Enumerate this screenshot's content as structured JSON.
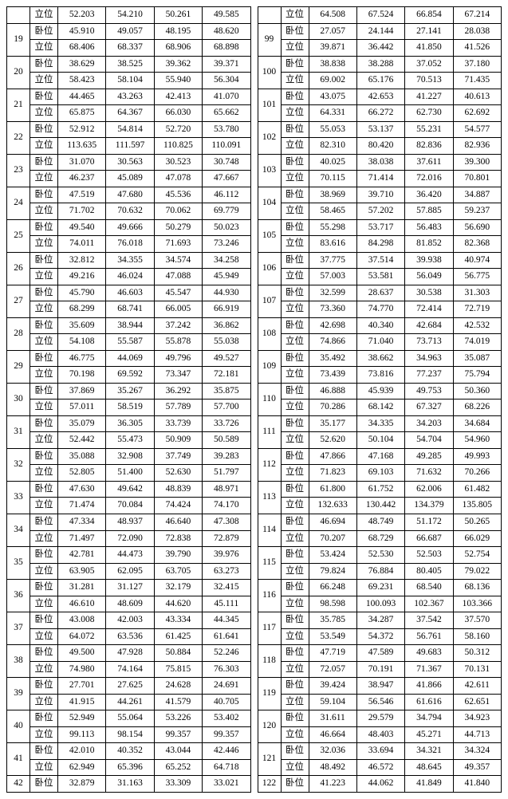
{
  "labels": {
    "lying": "卧位",
    "standing": "立位"
  },
  "style": {
    "font_family": "SimSun",
    "font_size_pt": 9,
    "border_color": "#000000",
    "background": "#ffffff",
    "text_color": "#000000"
  },
  "columns": {
    "left": {
      "first_row": {
        "pos": "standing",
        "vals": [
          "52.203",
          "54.210",
          "50.261",
          "49.585"
        ]
      },
      "entries": [
        {
          "id": "19",
          "lying": [
            "45.910",
            "49.057",
            "48.195",
            "48.620"
          ],
          "standing": [
            "68.406",
            "68.337",
            "68.906",
            "68.898"
          ]
        },
        {
          "id": "20",
          "lying": [
            "38.629",
            "38.525",
            "39.362",
            "39.371"
          ],
          "standing": [
            "58.423",
            "58.104",
            "55.940",
            "56.304"
          ]
        },
        {
          "id": "21",
          "lying": [
            "44.465",
            "43.263",
            "42.413",
            "41.070"
          ],
          "standing": [
            "65.875",
            "64.367",
            "66.030",
            "65.662"
          ]
        },
        {
          "id": "22",
          "lying": [
            "52.912",
            "54.814",
            "52.720",
            "53.780"
          ],
          "standing": [
            "113.635",
            "111.597",
            "110.825",
            "110.091"
          ]
        },
        {
          "id": "23",
          "lying": [
            "31.070",
            "30.563",
            "30.523",
            "30.748"
          ],
          "standing": [
            "46.237",
            "45.089",
            "47.078",
            "47.667"
          ]
        },
        {
          "id": "24",
          "lying": [
            "47.519",
            "47.680",
            "45.536",
            "46.112"
          ],
          "standing": [
            "71.702",
            "70.632",
            "70.062",
            "69.779"
          ]
        },
        {
          "id": "25",
          "lying": [
            "49.540",
            "49.666",
            "50.279",
            "50.023"
          ],
          "standing": [
            "74.011",
            "76.018",
            "71.693",
            "73.246"
          ]
        },
        {
          "id": "26",
          "lying": [
            "32.812",
            "34.355",
            "34.574",
            "34.258"
          ],
          "standing": [
            "49.216",
            "46.024",
            "47.088",
            "45.949"
          ]
        },
        {
          "id": "27",
          "lying": [
            "45.790",
            "46.603",
            "45.547",
            "44.930"
          ],
          "standing": [
            "68.299",
            "68.741",
            "66.005",
            "66.919"
          ]
        },
        {
          "id": "28",
          "lying": [
            "35.609",
            "38.944",
            "37.242",
            "36.862"
          ],
          "standing": [
            "54.108",
            "55.587",
            "55.878",
            "55.038"
          ]
        },
        {
          "id": "29",
          "lying": [
            "46.775",
            "44.069",
            "49.796",
            "49.527"
          ],
          "standing": [
            "70.198",
            "69.592",
            "73.347",
            "72.181"
          ]
        },
        {
          "id": "30",
          "lying": [
            "37.869",
            "35.267",
            "36.292",
            "35.875"
          ],
          "standing": [
            "57.011",
            "58.519",
            "57.789",
            "57.700"
          ]
        },
        {
          "id": "31",
          "lying": [
            "35.079",
            "36.305",
            "33.739",
            "33.726"
          ],
          "standing": [
            "52.442",
            "55.473",
            "50.909",
            "50.589"
          ]
        },
        {
          "id": "32",
          "lying": [
            "35.088",
            "32.908",
            "37.749",
            "39.283"
          ],
          "standing": [
            "52.805",
            "51.400",
            "52.630",
            "51.797"
          ]
        },
        {
          "id": "33",
          "lying": [
            "47.630",
            "49.642",
            "48.839",
            "48.971"
          ],
          "standing": [
            "71.474",
            "70.084",
            "74.424",
            "74.170"
          ]
        },
        {
          "id": "34",
          "lying": [
            "47.334",
            "48.937",
            "46.640",
            "47.308"
          ],
          "standing": [
            "71.497",
            "72.090",
            "72.838",
            "72.879"
          ]
        },
        {
          "id": "35",
          "lying": [
            "42.781",
            "44.473",
            "39.790",
            "39.976"
          ],
          "standing": [
            "63.905",
            "62.095",
            "63.705",
            "63.273"
          ]
        },
        {
          "id": "36",
          "lying": [
            "31.281",
            "31.127",
            "32.179",
            "32.415"
          ],
          "standing": [
            "46.610",
            "48.609",
            "44.620",
            "45.111"
          ]
        },
        {
          "id": "37",
          "lying": [
            "43.008",
            "42.003",
            "43.334",
            "44.345"
          ],
          "standing": [
            "64.072",
            "63.536",
            "61.425",
            "61.641"
          ]
        },
        {
          "id": "38",
          "lying": [
            "49.500",
            "47.928",
            "50.884",
            "52.246"
          ],
          "standing": [
            "74.980",
            "74.164",
            "75.815",
            "76.303"
          ]
        },
        {
          "id": "39",
          "lying": [
            "27.701",
            "27.625",
            "24.628",
            "24.691"
          ],
          "standing": [
            "41.915",
            "44.261",
            "41.579",
            "40.705"
          ]
        },
        {
          "id": "40",
          "lying": [
            "52.949",
            "55.064",
            "53.226",
            "53.402"
          ],
          "standing": [
            "99.113",
            "98.154",
            "99.357",
            "99.357"
          ]
        },
        {
          "id": "41",
          "lying": [
            "42.010",
            "40.352",
            "43.044",
            "42.446"
          ],
          "standing": [
            "62.949",
            "65.396",
            "65.252",
            "64.718"
          ]
        }
      ],
      "last_row": {
        "id": "42",
        "pos": "lying",
        "vals": [
          "32.879",
          "31.163",
          "33.309",
          "33.021"
        ]
      }
    },
    "right": {
      "first_row": {
        "pos": "standing",
        "vals": [
          "64.508",
          "67.524",
          "66.854",
          "67.214"
        ]
      },
      "entries": [
        {
          "id": "99",
          "lying": [
            "27.057",
            "24.144",
            "27.141",
            "28.038"
          ],
          "standing": [
            "39.871",
            "36.442",
            "41.850",
            "41.526"
          ]
        },
        {
          "id": "100",
          "lying": [
            "38.838",
            "38.288",
            "37.052",
            "37.180"
          ],
          "standing": [
            "69.002",
            "65.176",
            "70.513",
            "71.435"
          ]
        },
        {
          "id": "101",
          "lying": [
            "43.075",
            "42.653",
            "41.227",
            "40.613"
          ],
          "standing": [
            "64.331",
            "66.272",
            "62.730",
            "62.692"
          ]
        },
        {
          "id": "102",
          "lying": [
            "55.053",
            "53.137",
            "55.231",
            "54.577"
          ],
          "standing": [
            "82.310",
            "80.420",
            "82.836",
            "82.936"
          ]
        },
        {
          "id": "103",
          "lying": [
            "40.025",
            "38.038",
            "37.611",
            "39.300"
          ],
          "standing": [
            "70.115",
            "71.414",
            "72.016",
            "70.801"
          ]
        },
        {
          "id": "104",
          "lying": [
            "38.969",
            "39.710",
            "36.420",
            "34.887"
          ],
          "standing": [
            "58.465",
            "57.202",
            "57.885",
            "59.237"
          ]
        },
        {
          "id": "105",
          "lying": [
            "55.298",
            "53.717",
            "56.483",
            "56.690"
          ],
          "standing": [
            "83.616",
            "84.298",
            "81.852",
            "82.368"
          ]
        },
        {
          "id": "106",
          "lying": [
            "37.775",
            "37.514",
            "39.938",
            "40.974"
          ],
          "standing": [
            "57.003",
            "53.581",
            "56.049",
            "56.775"
          ]
        },
        {
          "id": "107",
          "lying": [
            "32.599",
            "28.637",
            "30.538",
            "31.303"
          ],
          "standing": [
            "73.360",
            "74.770",
            "72.414",
            "72.719"
          ]
        },
        {
          "id": "108",
          "lying": [
            "42.698",
            "40.340",
            "42.684",
            "42.532"
          ],
          "standing": [
            "74.866",
            "71.040",
            "73.713",
            "74.019"
          ]
        },
        {
          "id": "109",
          "lying": [
            "35.492",
            "38.662",
            "34.963",
            "35.087"
          ],
          "standing": [
            "73.439",
            "73.816",
            "77.237",
            "75.794"
          ]
        },
        {
          "id": "110",
          "lying": [
            "46.888",
            "45.939",
            "49.753",
            "50.360"
          ],
          "standing": [
            "70.286",
            "68.142",
            "67.327",
            "68.226"
          ]
        },
        {
          "id": "111",
          "lying": [
            "35.177",
            "34.335",
            "34.203",
            "34.684"
          ],
          "standing": [
            "52.620",
            "50.104",
            "54.704",
            "54.960"
          ]
        },
        {
          "id": "112",
          "lying": [
            "47.866",
            "47.168",
            "49.285",
            "49.993"
          ],
          "standing": [
            "71.823",
            "69.103",
            "71.632",
            "70.266"
          ]
        },
        {
          "id": "113",
          "lying": [
            "61.800",
            "61.752",
            "62.006",
            "61.482"
          ],
          "standing": [
            "132.633",
            "130.442",
            "134.379",
            "135.805"
          ]
        },
        {
          "id": "114",
          "lying": [
            "46.694",
            "48.749",
            "51.172",
            "50.265"
          ],
          "standing": [
            "70.207",
            "68.729",
            "66.687",
            "66.029"
          ]
        },
        {
          "id": "115",
          "lying": [
            "53.424",
            "52.530",
            "52.503",
            "52.754"
          ],
          "standing": [
            "79.824",
            "76.884",
            "80.405",
            "79.022"
          ]
        },
        {
          "id": "116",
          "lying": [
            "66.248",
            "69.231",
            "68.540",
            "68.136"
          ],
          "standing": [
            "98.598",
            "100.093",
            "102.367",
            "103.366"
          ]
        },
        {
          "id": "117",
          "lying": [
            "35.785",
            "34.287",
            "37.542",
            "37.570"
          ],
          "standing": [
            "53.549",
            "54.372",
            "56.761",
            "58.160"
          ]
        },
        {
          "id": "118",
          "lying": [
            "47.719",
            "47.589",
            "49.683",
            "50.312"
          ],
          "standing": [
            "72.057",
            "70.191",
            "71.367",
            "70.131"
          ]
        },
        {
          "id": "119",
          "lying": [
            "39.424",
            "38.947",
            "41.866",
            "42.611"
          ],
          "standing": [
            "59.104",
            "56.546",
            "61.616",
            "62.651"
          ]
        },
        {
          "id": "120",
          "lying": [
            "31.611",
            "29.579",
            "34.794",
            "34.923"
          ],
          "standing": [
            "46.664",
            "48.403",
            "45.271",
            "44.713"
          ]
        },
        {
          "id": "121",
          "lying": [
            "32.036",
            "33.694",
            "34.321",
            "34.324"
          ],
          "standing": [
            "48.492",
            "46.572",
            "48.645",
            "49.357"
          ]
        }
      ],
      "last_row": {
        "id": "122",
        "pos": "lying",
        "vals": [
          "41.223",
          "44.062",
          "41.849",
          "41.840"
        ]
      }
    }
  }
}
